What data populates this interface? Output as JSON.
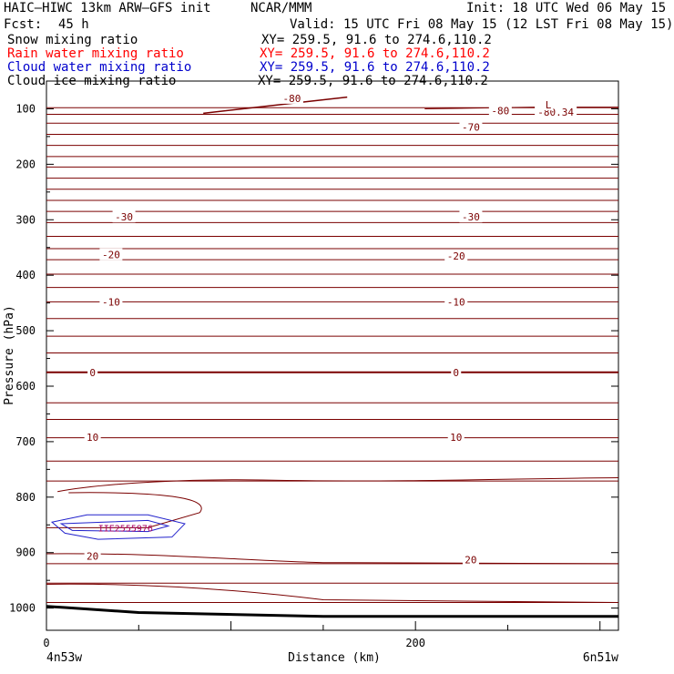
{
  "header": {
    "model": "HAIC—HIWC 13km ARW—GFS init",
    "center": "NCAR/MMM",
    "init": "Init: 18 UTC Wed 06 May 15",
    "fcst_label": "Fcst:",
    "fcst_value": "45 h",
    "valid": "Valid: 15 UTC Fri 08 May 15 (12 LST Fri 08 May 15)"
  },
  "fields": [
    {
      "name": "Snow mixing ratio",
      "xy": "XY= 259.5, 91.6 to 274.6,110.2",
      "color": "#000000"
    },
    {
      "name": "Rain water mixing ratio",
      "xy": "XY= 259.5, 91.6 to 274.6,110.2",
      "color": "#ff0000"
    },
    {
      "name": "Cloud water mixing ratio",
      "xy": "XY= 259.5, 91.6 to 274.6,110.2",
      "color": "#0000cc"
    },
    {
      "name": "Cloud ice mixing ratio",
      "xy": "XY= 259.5, 91.6 to 274.6,110.2",
      "color": "#000000"
    }
  ],
  "colors": {
    "isotherm": "#7a0000",
    "cloud_water": "#2222cc",
    "cloud_ice": "#aa0066",
    "terrain": "#000000"
  },
  "chart_data": {
    "type": "line",
    "xlabel": "Distance (km)",
    "ylabel": "Pressure (hPa)",
    "xlim": [
      0,
      310
    ],
    "ylim": [
      1040,
      50
    ],
    "x_ticks": [
      0,
      200
    ],
    "y_ticks": [
      100,
      200,
      300,
      400,
      500,
      600,
      700,
      800,
      900,
      1000
    ],
    "x_endpoint_labels": {
      "left": "4n53w",
      "right": "6n51w"
    },
    "isotherm_levels_hpa": [
      98,
      110,
      126,
      146,
      166,
      186,
      205,
      225,
      245,
      265,
      285,
      305,
      330,
      352,
      372,
      398,
      422,
      448,
      478,
      510,
      540,
      575,
      630,
      660,
      693,
      735,
      771,
      920,
      955,
      990
    ],
    "isotherm_labels": [
      {
        "text": "-80",
        "x": 133,
        "p": 81
      },
      {
        "text": "-80",
        "x": 246,
        "p": 103
      },
      {
        "text": "-80.34",
        "x": 276,
        "p": 106
      },
      {
        "text": "L",
        "x": 272,
        "p": 93
      },
      {
        "text": "-70",
        "x": 230,
        "p": 133
      },
      {
        "text": "-30",
        "x": 42,
        "p": 295
      },
      {
        "text": "-30",
        "x": 230,
        "p": 295
      },
      {
        "text": "-20",
        "x": 35,
        "p": 363
      },
      {
        "text": "-20",
        "x": 222,
        "p": 365
      },
      {
        "text": "-10",
        "x": 35,
        "p": 448
      },
      {
        "text": "-10",
        "x": 222,
        "p": 448
      },
      {
        "text": "0",
        "x": 25,
        "p": 575
      },
      {
        "text": "0",
        "x": 222,
        "p": 575
      },
      {
        "text": "10",
        "x": 25,
        "p": 692
      },
      {
        "text": "10",
        "x": 222,
        "p": 692
      },
      {
        "text": "20",
        "x": 25,
        "p": 906
      },
      {
        "text": "20",
        "x": 230,
        "p": 913
      }
    ],
    "cloud_feature_label": "IIE2555976",
    "terrain": {
      "x": [
        0,
        10,
        50,
        150,
        310
      ],
      "p": [
        997,
        999,
        1008,
        1015,
        1015
      ]
    }
  }
}
